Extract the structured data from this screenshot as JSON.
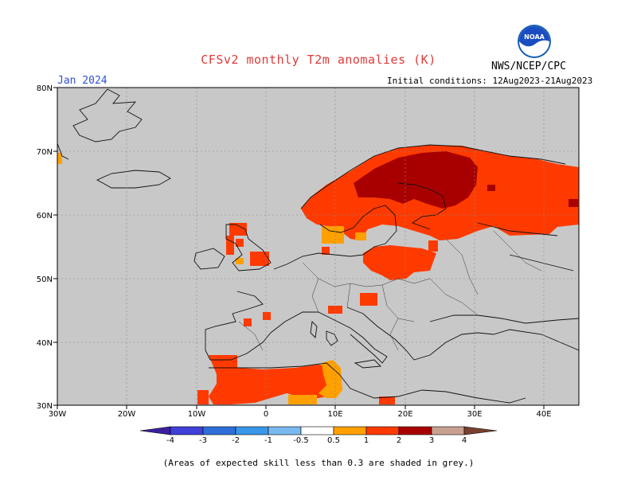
{
  "header": {
    "title": "CFSv2 monthly T2m anomalies (K)",
    "month": "Jan 2024",
    "agency": "NWS/NCEP/CPC",
    "initial_conditions": "Initial conditions: 12Aug2023-21Aug2023",
    "logo_text": "NOAA"
  },
  "map": {
    "background_color": "#c8c8c8",
    "lat_labels": [
      "80N",
      "70N",
      "60N",
      "50N",
      "40N",
      "30N"
    ],
    "lon_labels": [
      "30W",
      "20W",
      "10W",
      "0",
      "10E",
      "20E",
      "30E",
      "40E"
    ],
    "anomaly_colors": {
      "0.5-1": "#ffa000",
      "1-2": "#ff3a00",
      "2-3": "#a80000"
    },
    "regions": [
      {
        "name": "scandinavia-strong-warm",
        "level": "2-3"
      },
      {
        "name": "scandinavia-russia-warm",
        "level": "1-2"
      },
      {
        "name": "baltic-poland-warm",
        "level": "1-2"
      },
      {
        "name": "british-isles-warm",
        "level": "1-2"
      },
      {
        "name": "north-africa-warm",
        "level": "1-2"
      },
      {
        "name": "tunisia-libya-mild",
        "level": "0.5-1"
      },
      {
        "name": "denmark-mild",
        "level": "0.5-1"
      }
    ]
  },
  "colorbar": {
    "labels": [
      "-4",
      "-3",
      "-2",
      "-1",
      "-0.5",
      "0.5",
      "1",
      "2",
      "3",
      "4"
    ],
    "colors": [
      "#3c1fa0",
      "#4040d8",
      "#2e6fd8",
      "#3a96e8",
      "#7ab8f0",
      "#ffffff",
      "#ffa000",
      "#ff3a00",
      "#a80000",
      "#c8a090",
      "#7a4030"
    ]
  },
  "footnote": "(Areas of expected skill less than 0.3 are shaded in grey.)"
}
